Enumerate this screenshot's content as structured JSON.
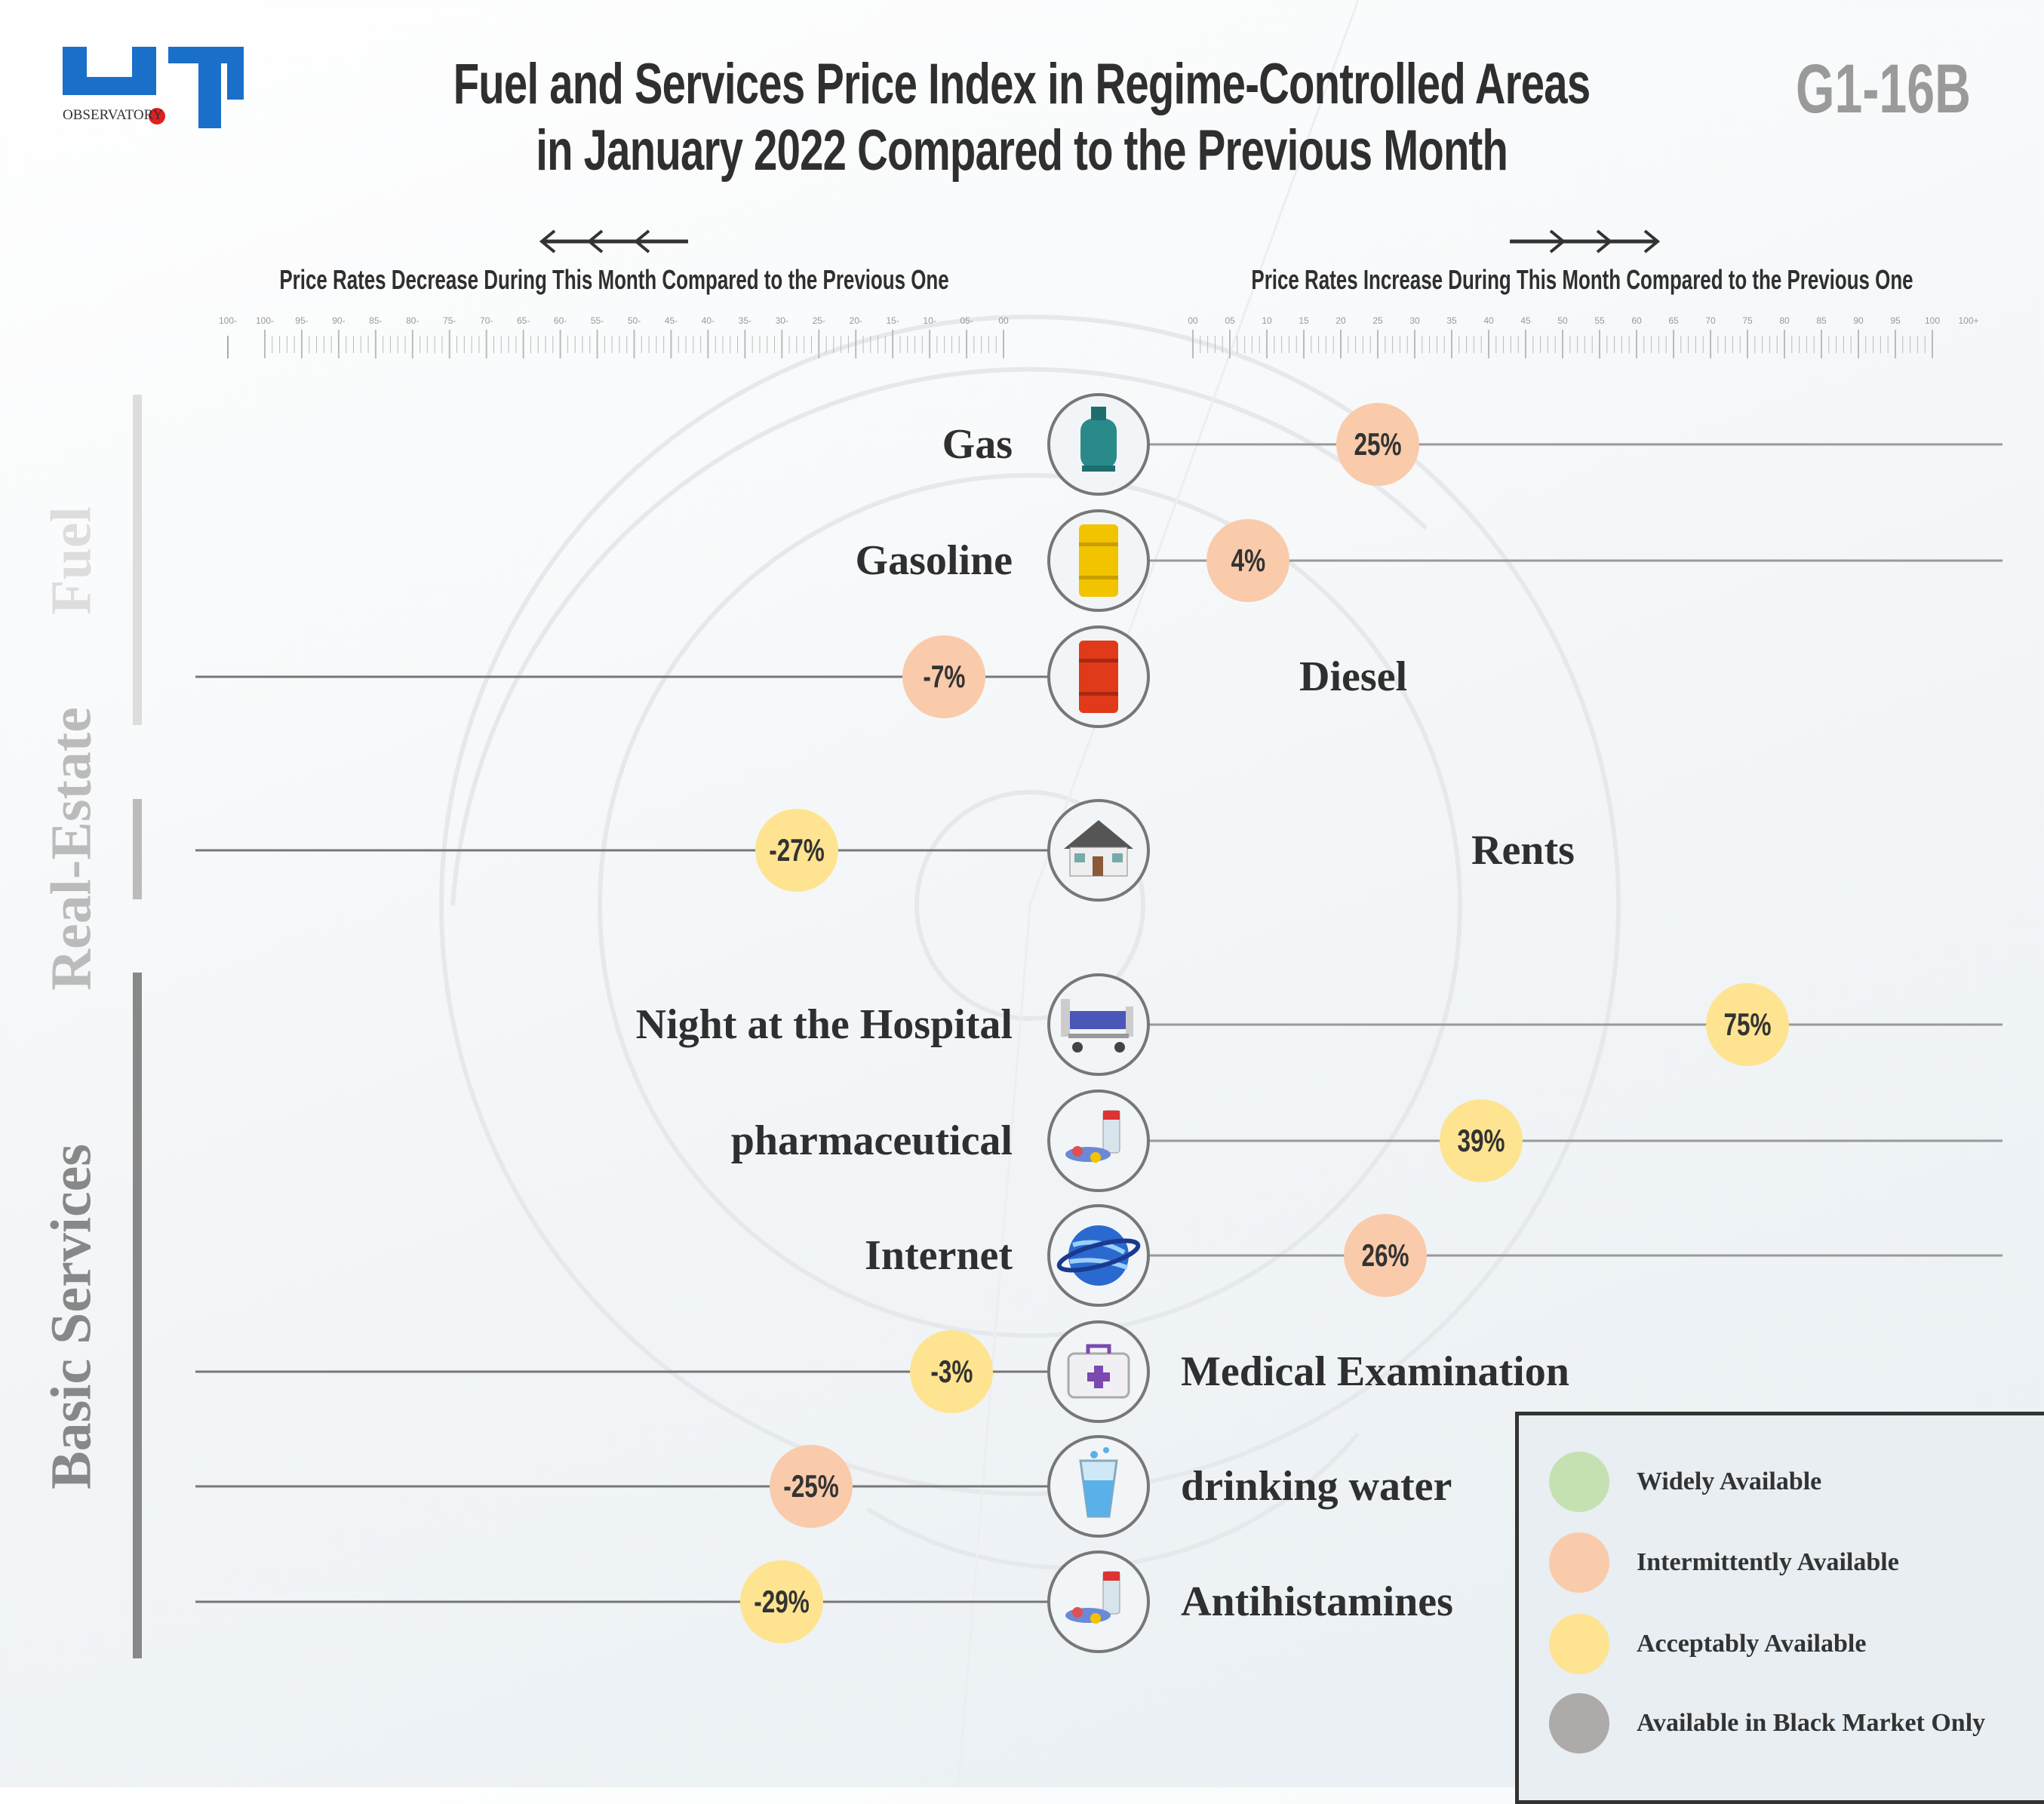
{
  "header": {
    "logo_text": "OBSERVATORY",
    "title_line1": "Fuel and Services Price Index in Regime-Controlled Areas",
    "title_line2": "in January 2022 Compared to the Previous Month",
    "code": "G1-16B"
  },
  "direction": {
    "decrease_label": "Price Rates Decrease During This Month Compared to the Previous One",
    "increase_label": "Price Rates Increase During This Month Compared to the Previous One"
  },
  "scale": {
    "left_ticks": [
      "100-",
      "100-",
      "95-",
      "90-",
      "85-",
      "80-",
      "75-",
      "70-",
      "65-",
      "60-",
      "55-",
      "50-",
      "45-",
      "40-",
      "35-",
      "30-",
      "25-",
      "20-",
      "15-",
      "10-",
      "05-",
      "00"
    ],
    "right_ticks": [
      "00",
      "05",
      "10",
      "15",
      "20",
      "25",
      "30",
      "35",
      "40",
      "45",
      "50",
      "55",
      "60",
      "65",
      "70",
      "75",
      "80",
      "85",
      "90",
      "95",
      "100",
      "100+"
    ]
  },
  "categories": [
    {
      "name": "Fuel",
      "color": "#dddddd"
    },
    {
      "name": "Real-Estate",
      "color": "#bbbbbb"
    },
    {
      "name": "Basic Services",
      "color": "#888888"
    }
  ],
  "colors": {
    "widely": "#c5e1b1",
    "intermittent": "#f9cbab",
    "acceptable": "#fee490",
    "black_market": "#aeaaaa",
    "line": "#888888"
  },
  "chart_data": {
    "type": "bar",
    "xlim": [
      -100,
      100
    ],
    "unit": "%",
    "items": [
      {
        "name": "Gas",
        "group": "Fuel",
        "value": 25,
        "label": "25%",
        "availability": "intermittent",
        "icon": "gas-cylinder-icon"
      },
      {
        "name": "Gasoline",
        "group": "Fuel",
        "value": 4,
        "label": "4%",
        "availability": "intermittent",
        "icon": "yellow-barrel-icon"
      },
      {
        "name": "Diesel",
        "group": "Fuel",
        "value": -7,
        "label": "-7%",
        "availability": "intermittent",
        "icon": "red-barrel-icon"
      },
      {
        "name": "Rents",
        "group": "Real-Estate",
        "value": -27,
        "label": "-27%",
        "availability": "acceptable",
        "icon": "house-icon"
      },
      {
        "name": "Night at the Hospital",
        "group": "Basic Services",
        "value": 75,
        "label": "75%",
        "availability": "acceptable",
        "icon": "hospital-bed-icon"
      },
      {
        "name": "pharmaceutical",
        "group": "Basic Services",
        "value": 39,
        "label": "39%",
        "availability": "acceptable",
        "icon": "pills-icon"
      },
      {
        "name": "Internet",
        "group": "Basic Services",
        "value": 26,
        "label": "26%",
        "availability": "intermittent",
        "icon": "globe-icon"
      },
      {
        "name": "Medical Examination",
        "group": "Basic Services",
        "value": -3,
        "label": "-3%",
        "availability": "acceptable",
        "icon": "first-aid-kit-icon"
      },
      {
        "name": "drinking water",
        "group": "Basic Services",
        "value": -25,
        "label": "-25%",
        "availability": "intermittent",
        "icon": "water-glass-icon"
      },
      {
        "name": "Antihistamines",
        "group": "Basic Services",
        "value": -29,
        "label": "-29%",
        "availability": "acceptable",
        "icon": "pills-icon"
      }
    ]
  },
  "legend": {
    "placement": "bottom-right",
    "items": [
      {
        "label": "Widely Available",
        "key": "widely"
      },
      {
        "label": "Intermittently Available",
        "key": "intermittent"
      },
      {
        "label": "Acceptably Available",
        "key": "acceptable"
      },
      {
        "label": "Available in Black Market Only",
        "key": "black_market"
      }
    ]
  }
}
